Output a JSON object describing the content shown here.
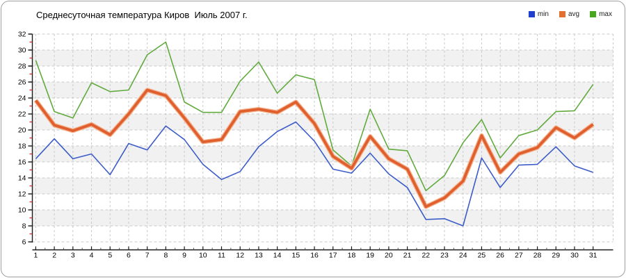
{
  "title": "Среднесуточная температура Киров  Июль 2007 г.",
  "legend": [
    {
      "label": "min",
      "color": "#1f3fcc"
    },
    {
      "label": "avg",
      "color": "#e2712f"
    },
    {
      "label": "max",
      "color": "#47a81f"
    }
  ],
  "axes": {
    "y_ticks": [
      "32",
      "30",
      "28",
      "26",
      "24",
      "22",
      "20",
      "18",
      "16",
      "14",
      "12",
      "10",
      "8",
      "6"
    ],
    "x_ticks": [
      "1",
      "2",
      "3",
      "4",
      "5",
      "6",
      "7",
      "8",
      "9",
      "10",
      "11",
      "12",
      "13",
      "14",
      "15",
      "16",
      "17",
      "18",
      "19",
      "20",
      "21",
      "22",
      "23",
      "24",
      "25",
      "26",
      "27",
      "28",
      "29",
      "30",
      "31"
    ]
  },
  "colors": {
    "grid": "#c9c9c9",
    "band": "#f1f1f1",
    "axis": "#1a1a1a",
    "minor_tick": "#cc2222",
    "x_minor_tick": "#555555"
  },
  "chart_data": {
    "type": "line",
    "title": "Среднесуточная температура Киров  Июль 2007 г.",
    "xlabel": "",
    "ylabel": "",
    "x": [
      1,
      2,
      3,
      4,
      5,
      6,
      7,
      8,
      9,
      10,
      11,
      12,
      13,
      14,
      15,
      16,
      17,
      18,
      19,
      20,
      21,
      22,
      23,
      24,
      25,
      26,
      27,
      28,
      29,
      30,
      31
    ],
    "ylim": [
      6,
      32
    ],
    "ytick_step": 2,
    "grid": true,
    "legend_position": "top-right",
    "series": [
      {
        "name": "min",
        "color": "#3c5cc8",
        "width": 1.6,
        "values": [
          16.4,
          18.9,
          16.4,
          17.0,
          14.4,
          18.3,
          17.5,
          20.5,
          18.8,
          15.7,
          13.8,
          14.8,
          17.9,
          19.8,
          21.0,
          18.6,
          15.1,
          14.6,
          17.1,
          14.5,
          12.8,
          8.8,
          8.9,
          8.0,
          16.5,
          12.8,
          15.6,
          15.7,
          17.9,
          15.5,
          14.7
        ]
      },
      {
        "name": "avg",
        "color": "#e05f2e",
        "halo": "#f4b28c",
        "width": 3.8,
        "values": [
          23.7,
          20.6,
          19.9,
          20.7,
          19.4,
          22.0,
          25.0,
          24.3,
          21.5,
          18.5,
          18.8,
          22.3,
          22.6,
          22.2,
          23.5,
          20.8,
          16.7,
          15.2,
          19.2,
          16.4,
          15.1,
          10.4,
          11.5,
          13.6,
          19.3,
          14.7,
          17.0,
          17.8,
          20.3,
          19.0,
          20.7
        ]
      },
      {
        "name": "max",
        "color": "#61aa3e",
        "width": 1.6,
        "values": [
          28.7,
          22.3,
          21.5,
          25.9,
          24.8,
          25.0,
          29.4,
          31.0,
          23.5,
          22.2,
          22.2,
          26.1,
          28.5,
          24.6,
          26.9,
          26.3,
          17.5,
          15.5,
          22.6,
          17.6,
          17.4,
          12.4,
          14.3,
          18.4,
          21.3,
          16.5,
          19.3,
          20.0,
          22.3,
          22.4,
          25.7
        ]
      }
    ]
  }
}
